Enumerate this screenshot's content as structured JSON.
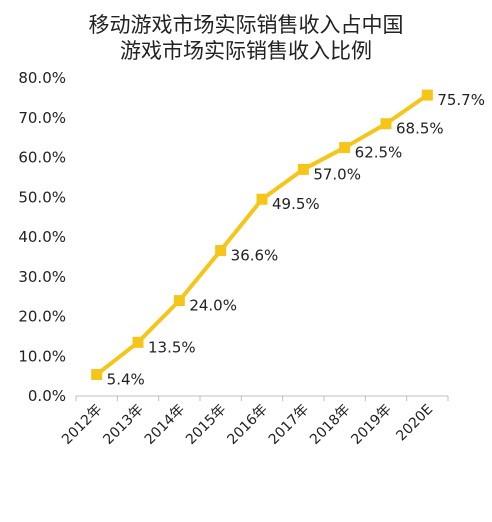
{
  "chart_data": {
    "type": "line",
    "title": [
      "移动游戏市场实际销售收入占中国",
      "游戏市场实际销售收入比例"
    ],
    "categories": [
      "2012年",
      "2013年",
      "2014年",
      "2015年",
      "2016年",
      "2017年",
      "2018年",
      "2019年",
      "2020E"
    ],
    "series": [
      {
        "values": [
          5.4,
          13.5,
          24.0,
          36.6,
          49.5,
          57.0,
          62.5,
          68.5,
          75.7
        ],
        "labels": [
          "5.4%",
          "13.5%",
          "24.0%",
          "36.6%",
          "49.5%",
          "57.0%",
          "62.5%",
          "68.5%",
          "75.7%"
        ],
        "color": "#f5c518"
      }
    ],
    "y_ticks": [
      "0.0%",
      "10.0%",
      "20.0%",
      "30.0%",
      "40.0%",
      "50.0%",
      "60.0%",
      "70.0%",
      "80.0%"
    ],
    "ylim": [
      0,
      80
    ],
    "grid": false,
    "legend": "none",
    "marker": "square"
  }
}
